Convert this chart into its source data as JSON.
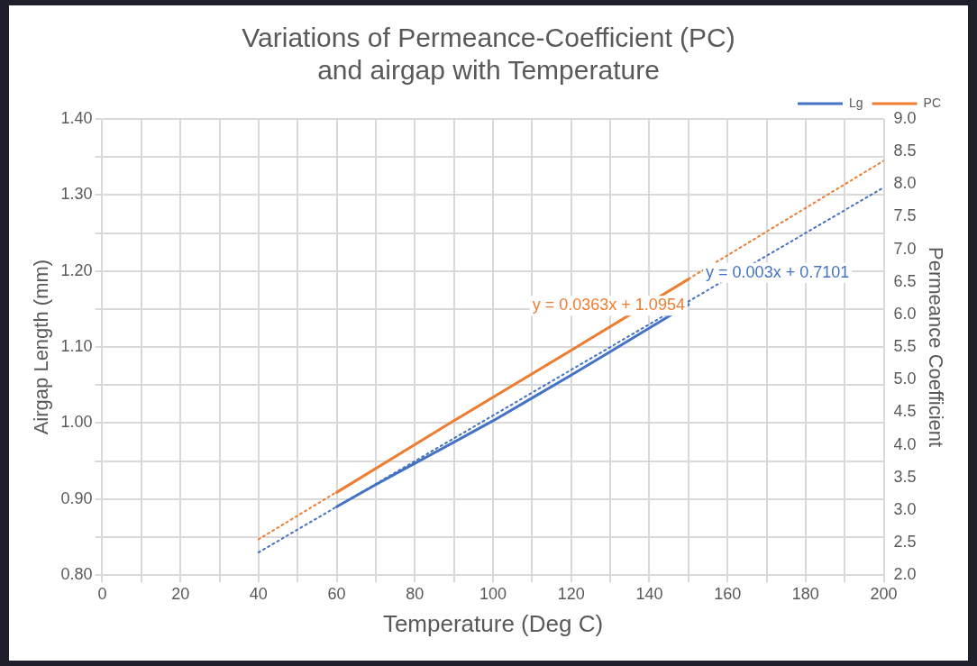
{
  "chart_data": {
    "type": "line",
    "title": "Variations of Permeance-Coefficient (PC)\nand airgap with Temperature",
    "xlabel": "Temperature (Deg C)",
    "ylabel": "Airgap Length (mm)",
    "y2label": "Permeance Coefficient",
    "x": [
      60,
      70,
      80,
      90,
      100,
      110,
      120,
      130,
      140,
      150
    ],
    "series": [
      {
        "name": "Lg",
        "color": "#4472c4",
        "values": [
          0.89,
          0.919,
          0.947,
          0.975,
          1.003,
          1.033,
          1.063,
          1.094,
          1.125,
          1.156
        ]
      },
      {
        "name": "PC",
        "color": "#ed7d31",
        "axis": "y2",
        "x": [
          60,
          90,
          120,
          150
        ],
        "values": [
          3.27,
          4.37,
          5.45,
          6.54
        ]
      },
      {
        "color": "#ed7d31",
        "axis": "y2",
        "line_style": "dotted",
        "x": [
          40,
          200
        ],
        "values": [
          2.55,
          8.36
        ]
      },
      {
        "color": "#4472c4",
        "line_style": "dotted",
        "x": [
          40,
          200
        ],
        "values": [
          0.83,
          1.31
        ]
      }
    ],
    "annotations": [
      "y = 0.0363x + 1.0954",
      "y = 0.003x + 0.7101"
    ],
    "xlim": [
      0,
      200
    ],
    "xticks": [
      0,
      {
        "value": 10,
        "label": null
      },
      20,
      {
        "value": 30,
        "label": null
      },
      40,
      {
        "value": 50,
        "label": null
      },
      60,
      {
        "value": 70,
        "label": null
      },
      80,
      {
        "value": 90,
        "label": null
      },
      100,
      {
        "value": 110,
        "label": null
      },
      120,
      {
        "value": 130,
        "label": null
      },
      140,
      {
        "value": 150,
        "label": null
      },
      160,
      {
        "value": 170,
        "label": null
      },
      180,
      {
        "value": 190,
        "label": null
      },
      200
    ],
    "ylim": [
      0.8,
      1.4
    ],
    "yticks": [
      {
        "value": 0.8,
        "label": "0.80"
      },
      {
        "value": 0.85,
        "label": null
      },
      {
        "value": 0.9,
        "label": "0.90"
      },
      {
        "value": 0.95,
        "label": null
      },
      {
        "value": 1.0,
        "label": "1.00"
      },
      {
        "value": 1.05,
        "label": null
      },
      {
        "value": 1.1,
        "label": "1.10"
      },
      {
        "value": 1.15,
        "label": null
      },
      {
        "value": 1.2,
        "label": "1.20"
      },
      {
        "value": 1.25,
        "label": null
      },
      {
        "value": 1.3,
        "label": "1.30"
      },
      {
        "value": 1.35,
        "label": null
      },
      {
        "value": 1.4,
        "label": "1.40"
      }
    ],
    "y2lim": [
      2,
      9
    ],
    "y2ticks": [
      {
        "value": 2,
        "label": "2.0"
      },
      2.5,
      {
        "value": 3,
        "label": "3.0"
      },
      3.5,
      {
        "value": 4,
        "label": "4.0"
      },
      4.5,
      {
        "value": 5,
        "label": "5.0"
      },
      5.5,
      {
        "value": 6,
        "label": "6.0"
      },
      6.5,
      {
        "value": 7,
        "label": "7.0"
      },
      7.5,
      {
        "value": 8,
        "label": "8.0"
      },
      8.5,
      {
        "value": 9,
        "label": "9.0"
      }
    ],
    "grid": true,
    "legend": "top right",
    "marker": "none",
    "line_style": "solid"
  }
}
